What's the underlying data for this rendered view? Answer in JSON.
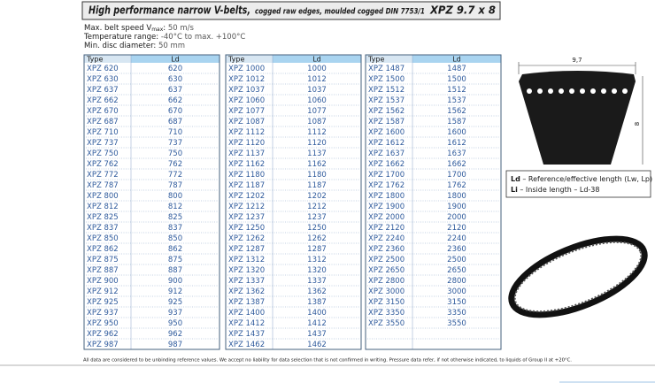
{
  "header": {
    "title": "High performance narrow V-belts,",
    "subtitle": "cogged raw edges, moulded cogged DIN 7753/1",
    "code": "XPZ 9.7 x 8"
  },
  "specs": [
    {
      "label": "Max. belt speed V",
      "subscript": "max",
      "label_end": ":",
      "value": "50 m/s"
    },
    {
      "label": "Temperature range:",
      "value": "-40°C to max. +100°C"
    },
    {
      "label": "Min. disc diameter:",
      "value": "50 mm"
    }
  ],
  "tables": [
    {
      "columns": [
        "Type",
        "Ld"
      ],
      "rows": [
        [
          "XPZ 620",
          "620"
        ],
        [
          "XPZ 630",
          "630"
        ],
        [
          "XPZ 637",
          "637"
        ],
        [
          "XPZ 662",
          "662"
        ],
        [
          "XPZ 670",
          "670"
        ],
        [
          "XPZ 687",
          "687"
        ],
        [
          "XPZ 710",
          "710"
        ],
        [
          "XPZ 737",
          "737"
        ],
        [
          "XPZ 750",
          "750"
        ],
        [
          "XPZ 762",
          "762"
        ],
        [
          "XPZ 772",
          "772"
        ],
        [
          "XPZ 787",
          "787"
        ],
        [
          "XPZ 800",
          "800"
        ],
        [
          "XPZ 812",
          "812"
        ],
        [
          "XPZ 825",
          "825"
        ],
        [
          "XPZ 837",
          "837"
        ],
        [
          "XPZ 850",
          "850"
        ],
        [
          "XPZ 862",
          "862"
        ],
        [
          "XPZ 875",
          "875"
        ],
        [
          "XPZ 887",
          "887"
        ],
        [
          "XPZ 900",
          "900"
        ],
        [
          "XPZ 912",
          "912"
        ],
        [
          "XPZ 925",
          "925"
        ],
        [
          "XPZ 937",
          "937"
        ],
        [
          "XPZ 950",
          "950"
        ],
        [
          "XPZ 962",
          "962"
        ],
        [
          "XPZ 987",
          "987"
        ]
      ]
    },
    {
      "columns": [
        "Type",
        "Ld"
      ],
      "rows": [
        [
          "XPZ 1000",
          "1000"
        ],
        [
          "XPZ 1012",
          "1012"
        ],
        [
          "XPZ 1037",
          "1037"
        ],
        [
          "XPZ 1060",
          "1060"
        ],
        [
          "XPZ 1077",
          "1077"
        ],
        [
          "XPZ 1087",
          "1087"
        ],
        [
          "XPZ 1112",
          "1112"
        ],
        [
          "XPZ 1120",
          "1120"
        ],
        [
          "XPZ 1137",
          "1137"
        ],
        [
          "XPZ 1162",
          "1162"
        ],
        [
          "XPZ 1180",
          "1180"
        ],
        [
          "XPZ 1187",
          "1187"
        ],
        [
          "XPZ 1202",
          "1202"
        ],
        [
          "XPZ 1212",
          "1212"
        ],
        [
          "XPZ 1237",
          "1237"
        ],
        [
          "XPZ 1250",
          "1250"
        ],
        [
          "XPZ 1262",
          "1262"
        ],
        [
          "XPZ 1287",
          "1287"
        ],
        [
          "XPZ 1312",
          "1312"
        ],
        [
          "XPZ 1320",
          "1320"
        ],
        [
          "XPZ 1337",
          "1337"
        ],
        [
          "XPZ 1362",
          "1362"
        ],
        [
          "XPZ 1387",
          "1387"
        ],
        [
          "XPZ 1400",
          "1400"
        ],
        [
          "XPZ 1412",
          "1412"
        ],
        [
          "XPZ 1437",
          "1437"
        ],
        [
          "XPZ 1462",
          "1462"
        ]
      ]
    },
    {
      "columns": [
        "Type",
        "Ld"
      ],
      "rows": [
        [
          "XPZ 1487",
          "1487"
        ],
        [
          "XPZ 1500",
          "1500"
        ],
        [
          "XPZ 1512",
          "1512"
        ],
        [
          "XPZ 1537",
          "1537"
        ],
        [
          "XPZ 1562",
          "1562"
        ],
        [
          "XPZ 1587",
          "1587"
        ],
        [
          "XPZ 1600",
          "1600"
        ],
        [
          "XPZ 1612",
          "1612"
        ],
        [
          "XPZ 1637",
          "1637"
        ],
        [
          "XPZ 1662",
          "1662"
        ],
        [
          "XPZ 1700",
          "1700"
        ],
        [
          "XPZ 1762",
          "1762"
        ],
        [
          "XPZ 1800",
          "1800"
        ],
        [
          "XPZ 1900",
          "1900"
        ],
        [
          "XPZ 2000",
          "2000"
        ],
        [
          "XPZ 2120",
          "2120"
        ],
        [
          "XPZ 2240",
          "2240"
        ],
        [
          "XPZ 2360",
          "2360"
        ],
        [
          "XPZ 2500",
          "2500"
        ],
        [
          "XPZ 2650",
          "2650"
        ],
        [
          "XPZ 2800",
          "2800"
        ],
        [
          "XPZ 3000",
          "3000"
        ],
        [
          "XPZ 3150",
          "3150"
        ],
        [
          "XPZ 3350",
          "3350"
        ],
        [
          "XPZ 3550",
          "3550"
        ]
      ]
    }
  ],
  "diagram": {
    "width_label": "9,7",
    "height_label": "8"
  },
  "legend": [
    {
      "term": "Ld",
      "text": " – Reference/effective length (Lw, Lp)"
    },
    {
      "term": "Li",
      "text": " – Inside length – Ld-38"
    }
  ],
  "footer": "All data are considered to be unbinding reference values. We accept no liability for data selection that is not confirmed in writing. Pressure data refer, if not otherwise indicated, to liquids of Group II at +20°C."
}
